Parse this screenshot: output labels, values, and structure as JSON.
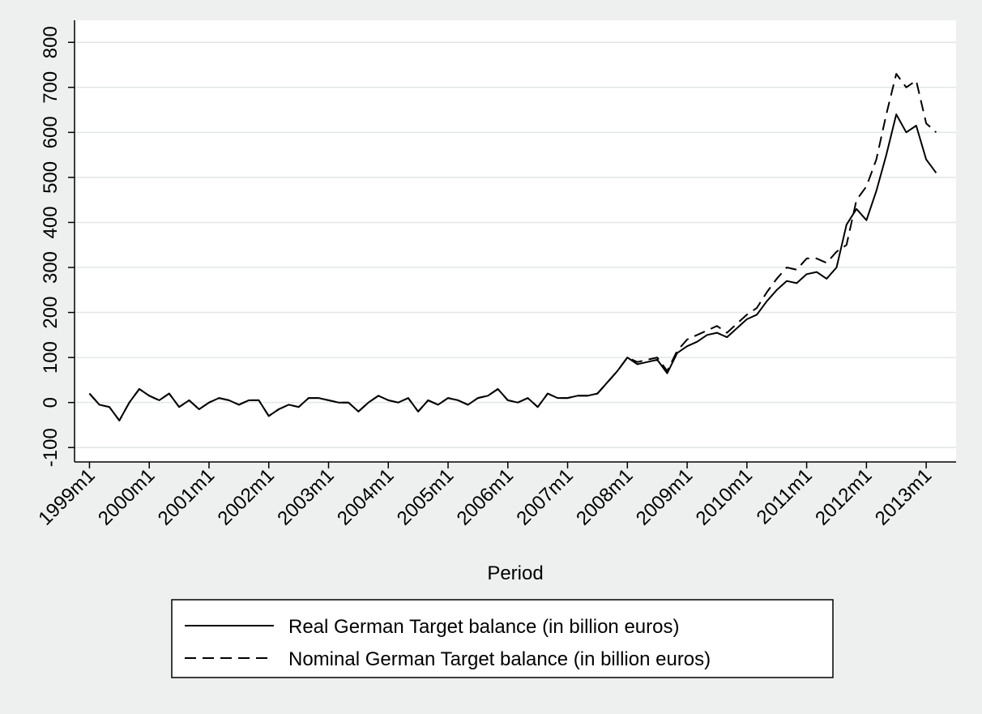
{
  "chart_data": {
    "type": "line",
    "x": [
      "1999m1",
      "1999m3",
      "1999m5",
      "1999m7",
      "1999m9",
      "1999m11",
      "2000m1",
      "2000m3",
      "2000m5",
      "2000m7",
      "2000m9",
      "2000m11",
      "2001m1",
      "2001m3",
      "2001m5",
      "2001m7",
      "2001m9",
      "2001m11",
      "2002m1",
      "2002m3",
      "2002m5",
      "2002m7",
      "2002m9",
      "2002m11",
      "2003m1",
      "2003m3",
      "2003m5",
      "2003m7",
      "2003m9",
      "2003m11",
      "2004m1",
      "2004m3",
      "2004m5",
      "2004m7",
      "2004m9",
      "2004m11",
      "2005m1",
      "2005m3",
      "2005m5",
      "2005m7",
      "2005m9",
      "2005m11",
      "2006m1",
      "2006m3",
      "2006m5",
      "2006m7",
      "2006m9",
      "2006m11",
      "2007m1",
      "2007m3",
      "2007m5",
      "2007m7",
      "2007m9",
      "2007m11",
      "2008m1",
      "2008m3",
      "2008m5",
      "2008m7",
      "2008m9",
      "2008m11",
      "2009m1",
      "2009m3",
      "2009m5",
      "2009m7",
      "2009m9",
      "2009m11",
      "2010m1",
      "2010m3",
      "2010m5",
      "2010m7",
      "2010m9",
      "2010m11",
      "2011m1",
      "2011m3",
      "2011m5",
      "2011m7",
      "2011m9",
      "2011m11",
      "2012m1",
      "2012m3",
      "2012m5",
      "2012m7",
      "2012m9",
      "2012m11",
      "2013m1",
      "2013m3"
    ],
    "series": [
      {
        "name": "Real German Target balance (in billion euros)",
        "color": "#000000",
        "dash": "solid",
        "values": [
          20,
          -5,
          -10,
          -40,
          0,
          30,
          15,
          5,
          20,
          -10,
          5,
          -15,
          0,
          10,
          5,
          -5,
          5,
          5,
          -30,
          -15,
          -5,
          -10,
          10,
          10,
          5,
          0,
          0,
          -20,
          0,
          15,
          5,
          0,
          10,
          -20,
          5,
          -5,
          10,
          5,
          -5,
          10,
          15,
          30,
          5,
          0,
          10,
          -10,
          20,
          10,
          10,
          15,
          15,
          20,
          45,
          70,
          100,
          85,
          90,
          95,
          65,
          110,
          125,
          135,
          150,
          155,
          145,
          165,
          185,
          195,
          225,
          250,
          270,
          265,
          285,
          290,
          275,
          300,
          395,
          430,
          405,
          470,
          550,
          640,
          600,
          615,
          540,
          510
        ]
      },
      {
        "name": "Nominal German Target balance (in billion euros)",
        "color": "#000000",
        "dash": "dashed",
        "values": [
          20,
          -5,
          -10,
          -40,
          0,
          30,
          15,
          5,
          20,
          -10,
          5,
          -15,
          0,
          10,
          5,
          -5,
          5,
          5,
          -30,
          -15,
          -5,
          -10,
          10,
          10,
          5,
          0,
          0,
          -20,
          0,
          15,
          5,
          0,
          10,
          -20,
          5,
          -5,
          10,
          5,
          -5,
          10,
          15,
          30,
          5,
          0,
          10,
          -10,
          20,
          10,
          10,
          15,
          15,
          20,
          45,
          70,
          100,
          90,
          95,
          100,
          70,
          115,
          140,
          150,
          160,
          170,
          155,
          175,
          195,
          210,
          245,
          275,
          300,
          295,
          320,
          320,
          310,
          335,
          350,
          450,
          480,
          540,
          640,
          730,
          700,
          715,
          620,
          600
        ]
      }
    ],
    "xlabel": "Period",
    "xlim": [
      "1998m10",
      "2013m7"
    ],
    "xticks": [
      "1999m1",
      "2000m1",
      "2001m1",
      "2002m1",
      "2003m1",
      "2004m1",
      "2005m1",
      "2006m1",
      "2007m1",
      "2008m1",
      "2009m1",
      "2010m1",
      "2011m1",
      "2012m1",
      "2013m1"
    ],
    "ylim": [
      -132,
      849
    ],
    "yticks": [
      -100,
      0,
      100,
      200,
      300,
      400,
      500,
      600,
      700,
      800
    ],
    "grid": true,
    "legend": "bottom"
  }
}
